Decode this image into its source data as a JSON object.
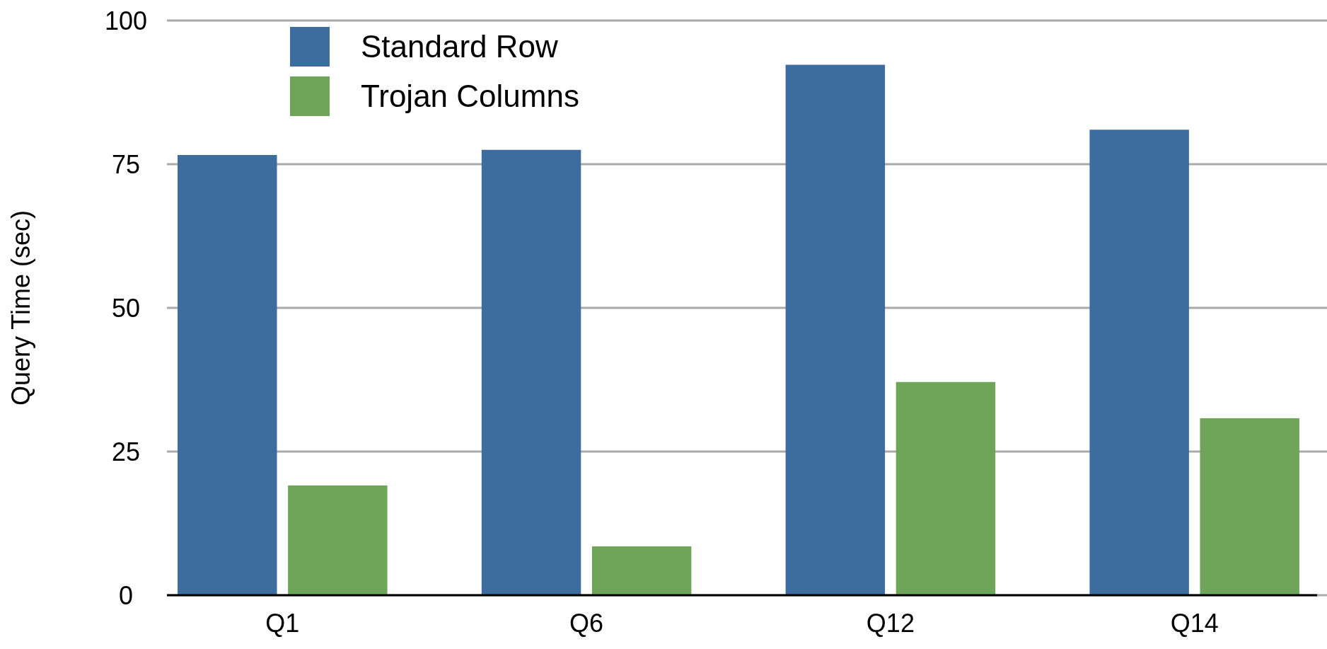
{
  "chart_data": {
    "type": "bar",
    "ylabel": "Query Time (sec)",
    "categories": [
      "Q1",
      "Q6",
      "Q12",
      "Q14"
    ],
    "series": [
      {
        "name": "Standard Row",
        "color": "#3d6d9e",
        "values": [
          76.6,
          77.5,
          92.3,
          81.0
        ]
      },
      {
        "name": "Trojan Columns",
        "color": "#6fa558",
        "values": [
          19.1,
          8.5,
          37.1,
          30.8
        ]
      }
    ],
    "ylim": [
      0,
      100
    ],
    "yticks": [
      0,
      25,
      50,
      75,
      100
    ],
    "grid": "y",
    "legend": "top left"
  }
}
